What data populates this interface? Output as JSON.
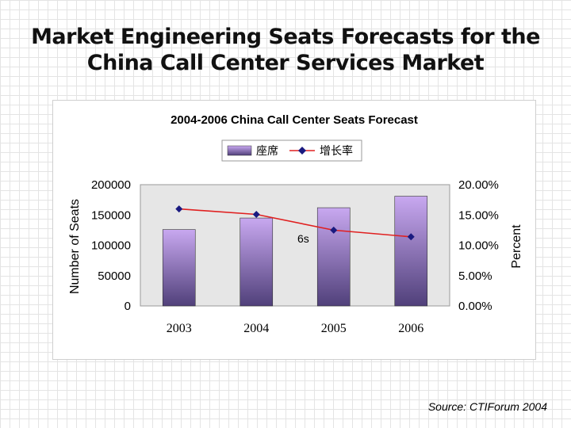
{
  "slide": {
    "title_line1": "Market Engineering Seats Forecasts for the",
    "title_line2": "China Call Center Services Market",
    "source": "Source: CTIForum 2004"
  },
  "colors": {
    "bar_top": "#c8a8f0",
    "bar_bottom": "#50407a",
    "line": "#e02020",
    "marker": "#1a1a80",
    "plot_bg": "#e6e6e6"
  },
  "chart_data": {
    "type": "bar",
    "title": "2004-2006 China Call Center Seats Forecast",
    "categories": [
      "2003",
      "2004",
      "2005",
      "2006"
    ],
    "series": [
      {
        "name": "座席",
        "type": "bar",
        "axis": "left",
        "values": [
          126000,
          145000,
          162000,
          181000
        ]
      },
      {
        "name": "增长率",
        "type": "line",
        "axis": "right",
        "values": [
          16.0,
          15.1,
          12.5,
          11.4
        ]
      }
    ],
    "ylabel": "Number of Seats",
    "ylim": [
      0,
      200000
    ],
    "yticks": [
      0,
      50000,
      100000,
      150000,
      200000
    ],
    "ytick_labels": [
      "0",
      "50000",
      "100000",
      "150000",
      "200000"
    ],
    "y2label": "Percent",
    "y2lim": [
      0,
      20
    ],
    "y2ticks": [
      0,
      5,
      10,
      15,
      20
    ],
    "y2tick_labels": [
      "0.00%",
      "5.00%",
      "10.00%",
      "15.00%",
      "20.00%"
    ],
    "annotation": "6s",
    "legend_position": "top-center",
    "grid": false
  }
}
